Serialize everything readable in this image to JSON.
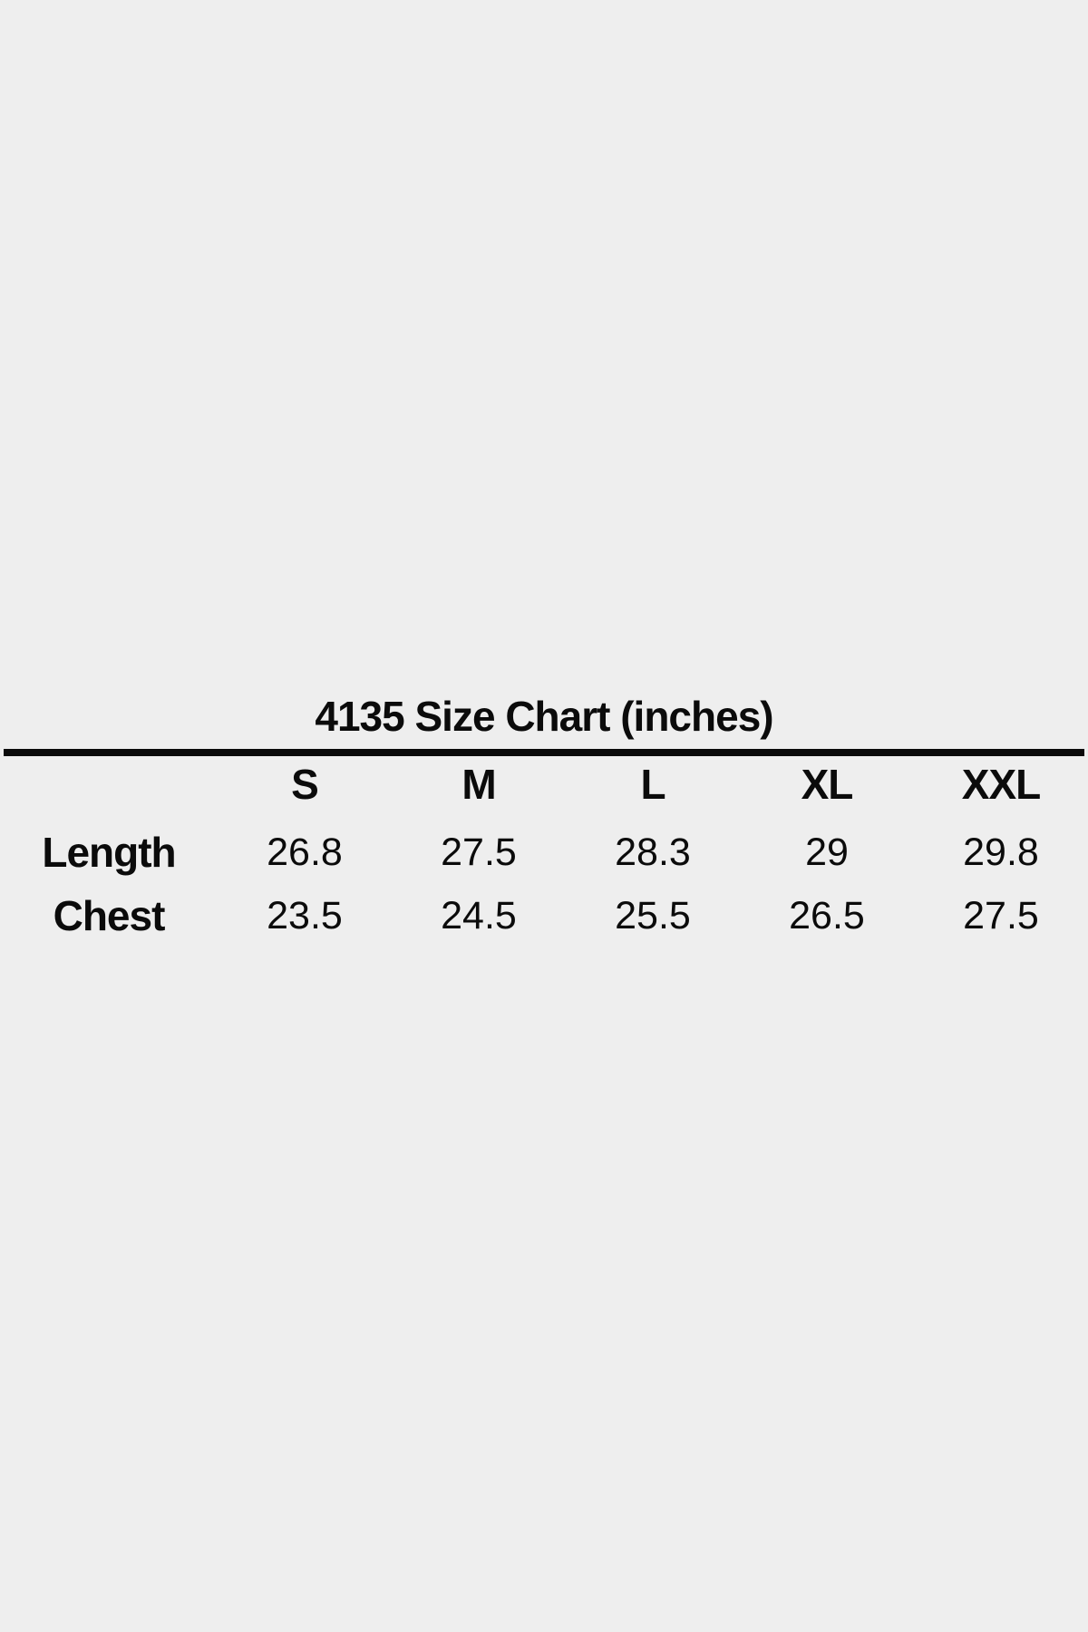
{
  "page": {
    "background_color": "#eeeeee",
    "text_color": "#0b0b0b",
    "rule_color": "#0a0a0a"
  },
  "chart_data": {
    "type": "table",
    "title": "4135 Size Chart (inches)",
    "unit": "inches",
    "columns": [
      "S",
      "M",
      "L",
      "XL",
      "XXL"
    ],
    "rows": [
      {
        "label": "Length",
        "values": [
          "26.8",
          "27.5",
          "28.3",
          "29",
          "29.8"
        ]
      },
      {
        "label": "Chest",
        "values": [
          "23.5",
          "24.5",
          "25.5",
          "26.5",
          "27.5"
        ]
      }
    ],
    "layout_hints": {
      "title_centered": true,
      "full_width_rule_below_title": true,
      "first_column_is_row_labels": true
    }
  }
}
